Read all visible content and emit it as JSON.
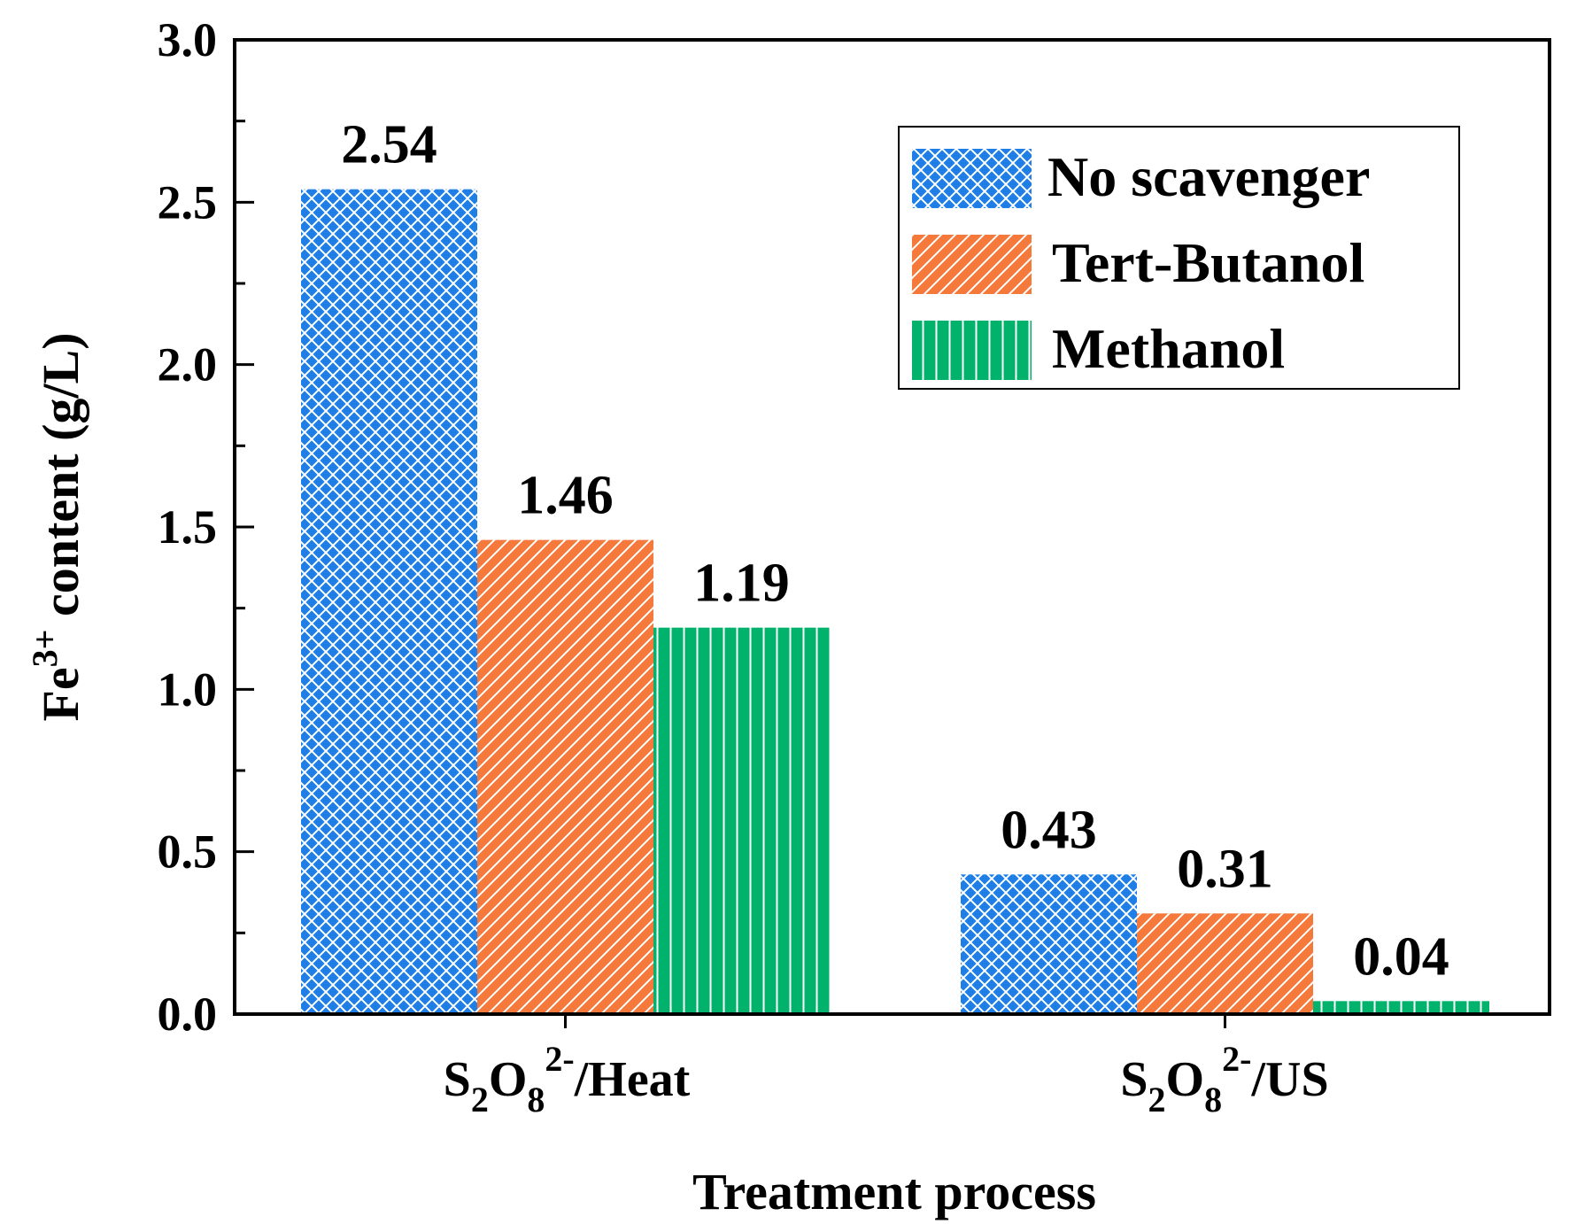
{
  "chart_data": {
    "type": "bar",
    "title": "",
    "xlabel": "Treatment process",
    "ylabel": {
      "base": "Fe",
      "sup": "3+",
      "rest": " content (g/L)"
    },
    "ylim": [
      0,
      3.0
    ],
    "y_ticks": [
      "0.0",
      "0.5",
      "1.0",
      "1.5",
      "2.0",
      "2.5",
      "3.0"
    ],
    "y_tick_values": [
      0,
      0.5,
      1.0,
      1.5,
      2.0,
      2.5,
      3.0
    ],
    "grid": false,
    "legend_position": "top-right",
    "categories": [
      {
        "s": "S",
        "sub1": "2",
        "o": "O",
        "sub2": "8",
        "sup": "2-",
        "suffix": "/Heat"
      },
      {
        "s": "S",
        "sub1": "2",
        "o": "O",
        "sub2": "8",
        "sup": "2-",
        "suffix": "/US"
      }
    ],
    "series": [
      {
        "name": "No scavenger",
        "values": [
          2.54,
          0.43
        ],
        "labels": [
          "2.54",
          "0.43"
        ],
        "color": "#1f7fe6",
        "pattern": "crosshatch"
      },
      {
        "name": "Tert-Butanol",
        "values": [
          1.46,
          0.31
        ],
        "labels": [
          "1.46",
          "0.31"
        ],
        "color": "#f5793a",
        "pattern": "diagonal"
      },
      {
        "name": "Methanol",
        "values": [
          1.19,
          0.04
        ],
        "labels": [
          "1.19",
          "0.04"
        ],
        "color": "#00b26b",
        "pattern": "vertical"
      }
    ]
  }
}
